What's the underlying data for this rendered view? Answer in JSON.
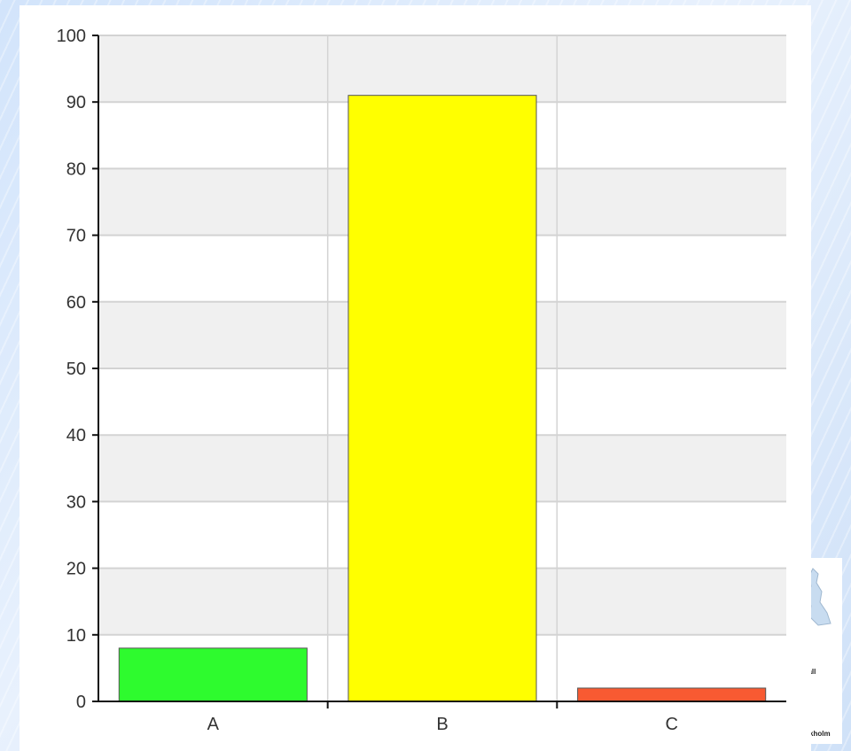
{
  "chart_data": {
    "type": "bar",
    "title": "",
    "xlabel": "",
    "ylabel": "",
    "categories": [
      "A",
      "B",
      "C"
    ],
    "values": [
      8,
      91,
      2
    ],
    "colors": [
      "#2efb2e",
      "#ffff00",
      "#f85a32"
    ],
    "ylim": [
      0,
      100
    ],
    "yticks": [
      0,
      10,
      20,
      30,
      40,
      50,
      60,
      70,
      80,
      90,
      100
    ],
    "grid": true,
    "legend": "none"
  },
  "side_panel": {
    "labels": [
      "vall",
      "kholm"
    ]
  }
}
